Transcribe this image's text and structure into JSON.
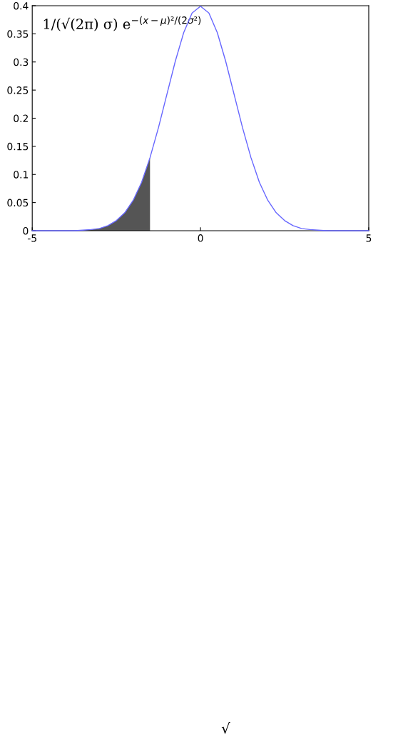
{
  "chart_data": {
    "type": "line",
    "x": [
      -5,
      -4.5,
      -4,
      -3.75,
      -3.5,
      -3.25,
      -3,
      -2.75,
      -2.5,
      -2.25,
      -2,
      -1.75,
      -1.5,
      -1.25,
      -1,
      -0.75,
      -0.5,
      -0.25,
      0,
      0.25,
      0.5,
      0.75,
      1,
      1.25,
      1.5,
      1.75,
      2,
      2.25,
      2.5,
      2.75,
      3,
      3.25,
      3.5,
      3.75,
      4,
      4.5,
      5
    ],
    "series": [
      {
        "color": "#6666ff",
        "values": [
          0,
          0,
          0,
          0,
          0.001,
          0.002,
          0.004,
          0.009,
          0.018,
          0.032,
          0.054,
          0.086,
          0.13,
          0.183,
          0.242,
          0.301,
          0.352,
          0.387,
          0.399,
          0.387,
          0.352,
          0.301,
          0.242,
          0.183,
          0.13,
          0.086,
          0.054,
          0.032,
          0.018,
          0.009,
          0.004,
          0.002,
          0.001,
          0,
          0,
          0,
          0
        ]
      },
      {
        "type": "area",
        "color": "#555555",
        "x": [
          -5,
          -4.5,
          -4,
          -3.75,
          -3.5,
          -3.25,
          -3,
          -2.75,
          -2.5,
          -2.25,
          -2,
          -1.75,
          -1.5
        ],
        "values": [
          0,
          0,
          0,
          0,
          0.001,
          0.002,
          0.004,
          0.009,
          0.018,
          0.032,
          0.054,
          0.086,
          0.13
        ]
      }
    ],
    "xlim": [
      -5,
      5
    ],
    "xticks": [
      -5,
      0,
      5
    ],
    "ylim": [
      0,
      0.4
    ],
    "yticks": [
      0,
      0.05,
      0.1,
      0.15,
      0.2,
      0.25,
      0.3,
      0.35,
      0.4
    ],
    "grid": false,
    "annotations": [
      "1/(√(2π) σ) e$^{−(x−μ)²/(2σ²)}$",
      "√"
    ]
  }
}
